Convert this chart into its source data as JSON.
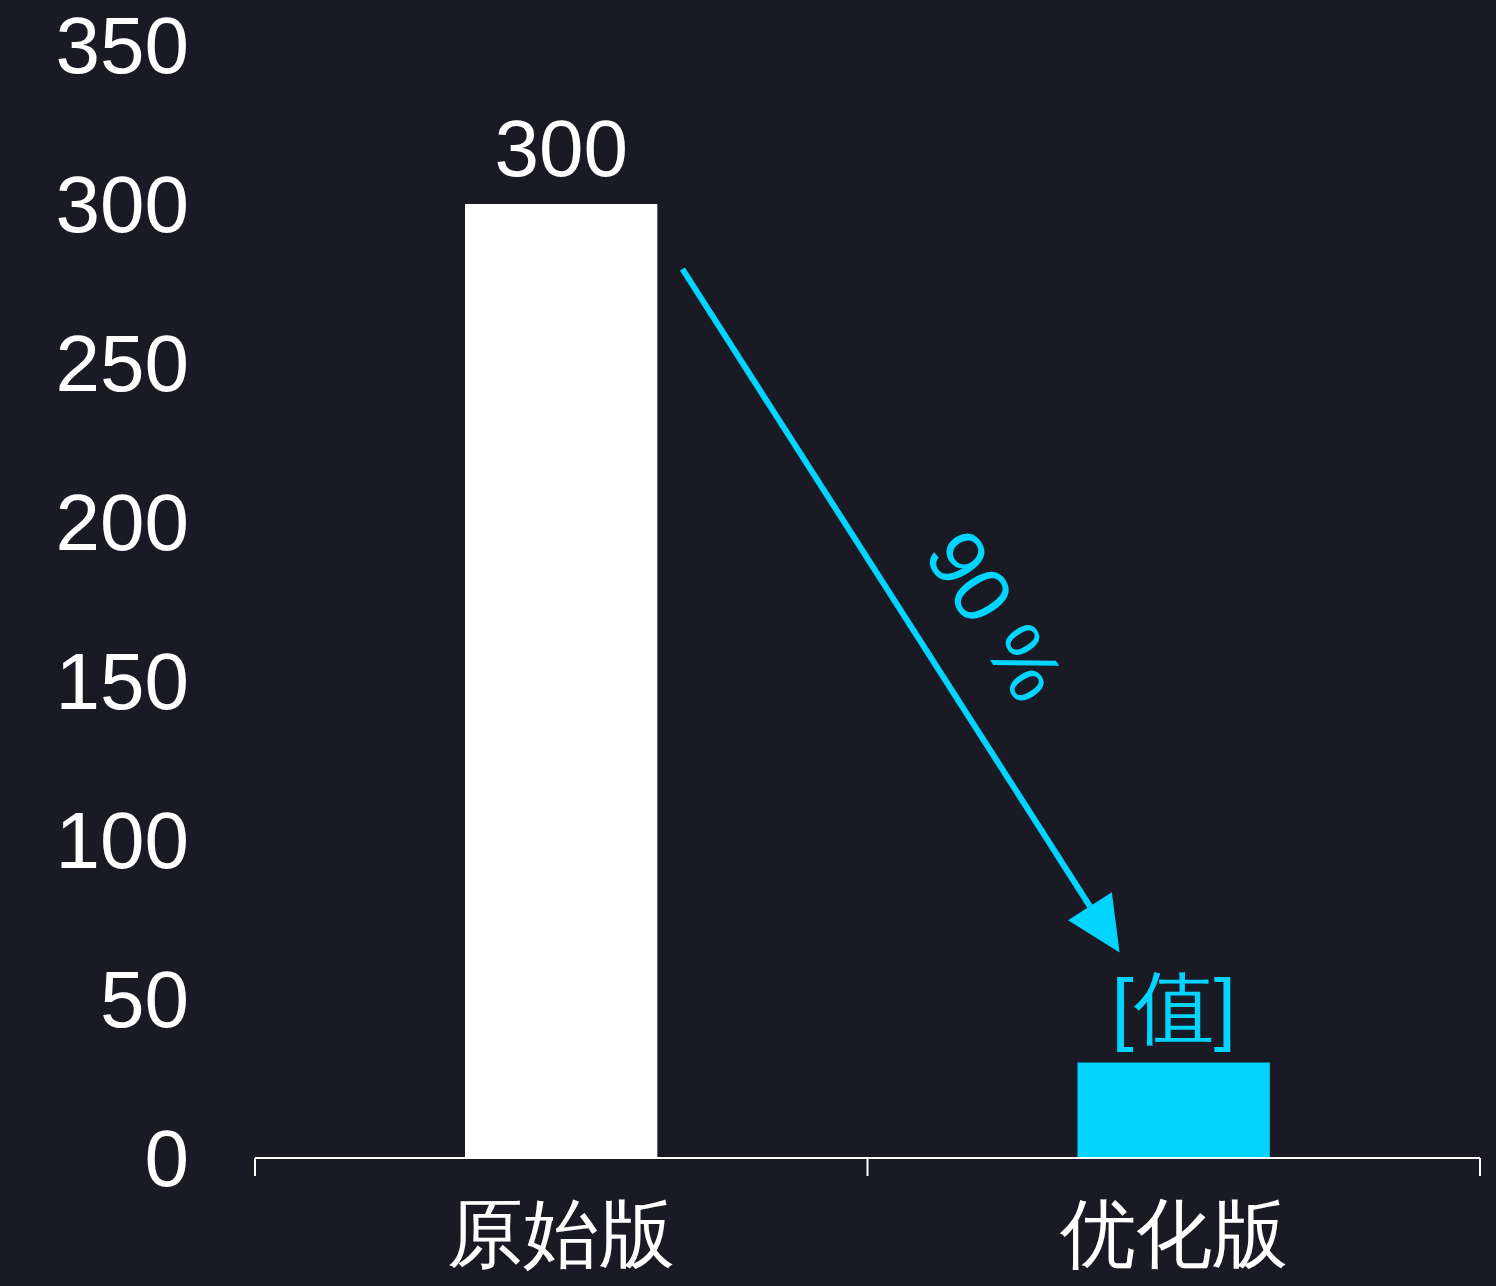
{
  "chart_data": {
    "type": "bar",
    "categories": [
      "原始版",
      "优化版"
    ],
    "values": [
      300,
      30
    ],
    "colors": [
      "#ffffff",
      "#00d4ff"
    ],
    "value_labels": [
      "300",
      "[值]"
    ],
    "ylim": [
      0,
      350
    ],
    "yticks": [
      0,
      50,
      100,
      150,
      200,
      250,
      300,
      350
    ],
    "annotations": [
      "90 %"
    ]
  }
}
